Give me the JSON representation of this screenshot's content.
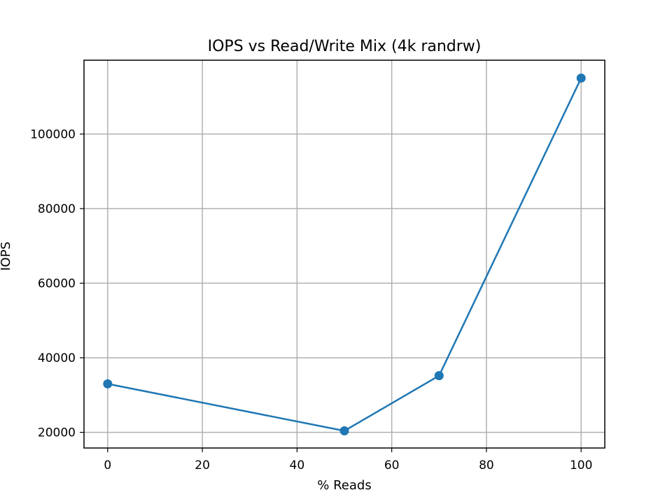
{
  "colors": {
    "series": "#1f77b4",
    "grid": "#b0b0b0",
    "axis": "#000000",
    "background": "#ffffff"
  },
  "chart_data": {
    "type": "line",
    "title": "IOPS vs Read/Write Mix (4k randrw)",
    "xlabel": "% Reads",
    "ylabel": "IOPS",
    "xlim": [
      -5,
      105
    ],
    "ylim": [
      15800,
      119800
    ],
    "x_ticks": [
      0,
      20,
      40,
      60,
      80,
      100
    ],
    "y_ticks": [
      20000,
      40000,
      60000,
      80000,
      100000
    ],
    "grid": true,
    "legend": "none",
    "marker": "circle",
    "series": [
      {
        "color": "#1f77b4",
        "points": [
          {
            "x": 0,
            "y": 33000
          },
          {
            "x": 50,
            "y": 20400
          },
          {
            "x": 70,
            "y": 35200
          },
          {
            "x": 100,
            "y": 115000
          }
        ]
      }
    ]
  }
}
